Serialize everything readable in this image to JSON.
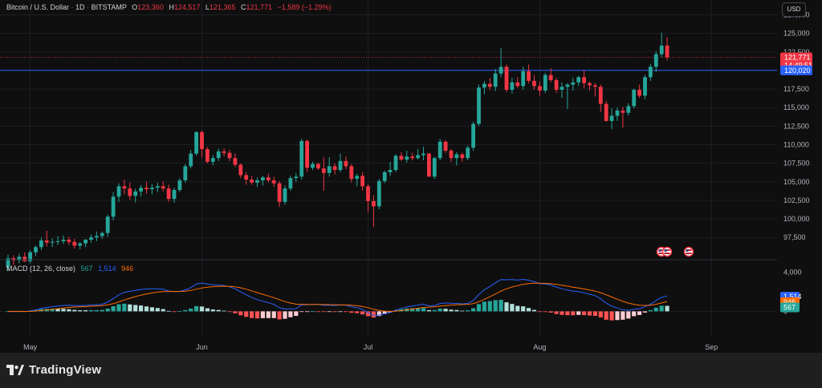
{
  "header": {
    "symbol": "Bitcoin / U.S. Dollar",
    "interval": "1D",
    "exchange": "BITSTAMP",
    "o_label": "O",
    "o_value": "123,360",
    "h_label": "H",
    "h_value": "124,517",
    "l_label": "L",
    "l_value": "121,365",
    "c_label": "C",
    "c_value": "121,771",
    "change": "−1,589 (−1.29%)"
  },
  "currency_button": "USD",
  "macd": {
    "label": "MACD (12, 26, close)",
    "hist_value": "567",
    "macd_value": "1,514",
    "signal_value": "946",
    "colors": {
      "macd": "#2962ff",
      "signal": "#ff6d00",
      "hist_pos_strong": "#26a69a",
      "hist_pos_weak": "#b2dfdb",
      "hist_neg_strong": "#ff5252",
      "hist_neg_weak": "#ffcdd2"
    }
  },
  "price_labels": {
    "last": "121,771",
    "countdown": "14:49:51",
    "line": "120,020"
  },
  "footer": {
    "brand": "TradingView"
  },
  "chart_data": {
    "type": "candlestick",
    "title": "Bitcoin / U.S. Dollar · 1D · BITSTAMP",
    "colors": {
      "up": "#26a69a",
      "down": "#f23645",
      "last_line": "#f23645",
      "hline": "#2962ff"
    },
    "y_ticks": [
      97500,
      100000,
      102500,
      105000,
      107500,
      110000,
      112500,
      115000,
      117500,
      120000,
      122500,
      125000,
      127500
    ],
    "y_tick_labels": [
      "97,500",
      "100,000",
      "102,500",
      "105,000",
      "107,500",
      "110,000",
      "112,500",
      "115,000",
      "117,500",
      "120,000",
      "122,500",
      "125,000",
      "127,500"
    ],
    "ylim": [
      94500,
      129500
    ],
    "x_labels": [
      "May",
      "Jun",
      "Jul",
      "Aug",
      "Sep"
    ],
    "x_label_index": [
      4,
      35,
      65,
      96,
      127
    ],
    "hline": 120020,
    "last_price": 121771,
    "macd_y_ticks": [
      0,
      4000
    ],
    "macd_y_tick_labels": [
      "0",
      "4,000"
    ],
    "macd_ylim": [
      -2600,
      4800
    ],
    "candles": [
      [
        93500,
        95200,
        93000,
        94700
      ],
      [
        94700,
        95100,
        93800,
        94400
      ],
      [
        94400,
        95300,
        94000,
        94900
      ],
      [
        94900,
        95500,
        94200,
        94300
      ],
      [
        94300,
        95800,
        94000,
        95500
      ],
      [
        95500,
        96400,
        95000,
        96200
      ],
      [
        96200,
        97500,
        95800,
        97100
      ],
      [
        97100,
        98400,
        96300,
        96800
      ],
      [
        96800,
        97400,
        96200,
        96900
      ],
      [
        96900,
        97700,
        96500,
        97000
      ],
      [
        97000,
        97800,
        96600,
        97200
      ],
      [
        97200,
        97600,
        96500,
        96900
      ],
      [
        96900,
        97300,
        96000,
        96400
      ],
      [
        96400,
        96900,
        95900,
        96700
      ],
      [
        96700,
        97300,
        96200,
        97200
      ],
      [
        97200,
        97900,
        96800,
        97500
      ],
      [
        97500,
        98300,
        97000,
        97700
      ],
      [
        97700,
        98300,
        97300,
        98100
      ],
      [
        98100,
        100600,
        97600,
        100300
      ],
      [
        100300,
        103600,
        99800,
        103000
      ],
      [
        103000,
        104800,
        102300,
        104400
      ],
      [
        104400,
        105300,
        103300,
        104100
      ],
      [
        104100,
        104900,
        102600,
        103100
      ],
      [
        103100,
        104100,
        102200,
        103700
      ],
      [
        103700,
        104600,
        103000,
        104200
      ],
      [
        104200,
        105000,
        103400,
        104000
      ],
      [
        104000,
        104700,
        103300,
        104200
      ],
      [
        104200,
        104900,
        103600,
        104400
      ],
      [
        104400,
        105100,
        103700,
        104100
      ],
      [
        104100,
        104600,
        102300,
        102700
      ],
      [
        102700,
        104200,
        102200,
        103900
      ],
      [
        103900,
        105500,
        103600,
        105200
      ],
      [
        105200,
        107400,
        104900,
        107100
      ],
      [
        107100,
        109300,
        106800,
        108800
      ],
      [
        108800,
        111800,
        108500,
        111700
      ],
      [
        111700,
        111900,
        108300,
        109400
      ],
      [
        109400,
        109700,
        107500,
        107700
      ],
      [
        107700,
        108600,
        107200,
        108200
      ],
      [
        108200,
        109500,
        107800,
        109100
      ],
      [
        109100,
        109500,
        108400,
        108900
      ],
      [
        108900,
        109300,
        107800,
        108200
      ],
      [
        108200,
        108800,
        107000,
        107300
      ],
      [
        107300,
        107500,
        105500,
        105900
      ],
      [
        105900,
        106300,
        104600,
        105300
      ],
      [
        105300,
        105800,
        104600,
        104900
      ],
      [
        104900,
        105600,
        104300,
        105200
      ],
      [
        105200,
        105800,
        104500,
        105600
      ],
      [
        105600,
        106100,
        104900,
        105200
      ],
      [
        105200,
        105700,
        104300,
        104800
      ],
      [
        104800,
        105100,
        101600,
        102300
      ],
      [
        102300,
        104500,
        101900,
        104100
      ],
      [
        104100,
        105800,
        103800,
        105500
      ],
      [
        105500,
        106200,
        105000,
        105700
      ],
      [
        105700,
        110800,
        105300,
        110500
      ],
      [
        110500,
        110700,
        106300,
        106900
      ],
      [
        106900,
        107700,
        106600,
        107400
      ],
      [
        107400,
        107600,
        106600,
        106800
      ],
      [
        106800,
        108300,
        103800,
        106200
      ],
      [
        106200,
        108300,
        105700,
        107100
      ],
      [
        107100,
        107500,
        106000,
        106600
      ],
      [
        106600,
        108800,
        106300,
        107800
      ],
      [
        107800,
        108400,
        106700,
        107100
      ],
      [
        107100,
        107400,
        104900,
        105400
      ],
      [
        105400,
        106100,
        104400,
        105800
      ],
      [
        105800,
        106300,
        103800,
        104400
      ],
      [
        104400,
        104700,
        100900,
        102400
      ],
      [
        102400,
        103200,
        98900,
        101700
      ],
      [
        101700,
        105400,
        101300,
        105100
      ],
      [
        105100,
        106500,
        104800,
        106300
      ],
      [
        106300,
        107700,
        105800,
        106600
      ],
      [
        106600,
        108700,
        106300,
        108500
      ],
      [
        108500,
        109000,
        107800,
        108000
      ],
      [
        108000,
        109200,
        107600,
        108400
      ],
      [
        108400,
        108900,
        107900,
        108200
      ],
      [
        108200,
        109400,
        108000,
        108600
      ],
      [
        108600,
        109700,
        107900,
        108800
      ],
      [
        108800,
        108900,
        105700,
        105700
      ],
      [
        105700,
        108400,
        105400,
        108200
      ],
      [
        108200,
        110800,
        107900,
        110400
      ],
      [
        110400,
        110600,
        108900,
        109200
      ],
      [
        109200,
        109400,
        107700,
        108200
      ],
      [
        108200,
        109000,
        107200,
        108700
      ],
      [
        108700,
        108900,
        107700,
        108200
      ],
      [
        108200,
        109900,
        107900,
        109600
      ],
      [
        109600,
        113100,
        109200,
        112800
      ],
      [
        112800,
        118100,
        112500,
        117700
      ],
      [
        117700,
        118600,
        116800,
        118200
      ],
      [
        118200,
        119000,
        117400,
        117800
      ],
      [
        117800,
        120200,
        117200,
        119600
      ],
      [
        119600,
        123000,
        119100,
        120500
      ],
      [
        120500,
        120800,
        117100,
        117400
      ],
      [
        117400,
        119000,
        116900,
        118400
      ],
      [
        118400,
        119100,
        117600,
        117900
      ],
      [
        117900,
        120500,
        117400,
        119900
      ],
      [
        119900,
        120800,
        118300,
        118600
      ],
      [
        118600,
        119400,
        117400,
        117900
      ],
      [
        117900,
        118500,
        116600,
        117300
      ],
      [
        117300,
        119700,
        117000,
        119400
      ],
      [
        119400,
        120300,
        118400,
        118700
      ],
      [
        118700,
        119000,
        117000,
        117400
      ],
      [
        117400,
        118400,
        116300,
        117800
      ],
      [
        117800,
        118300,
        114800,
        118100
      ],
      [
        118100,
        119000,
        117300,
        118400
      ],
      [
        118400,
        119300,
        117900,
        119100
      ],
      [
        119100,
        120000,
        117600,
        118300
      ],
      [
        118300,
        118500,
        117300,
        118000
      ],
      [
        118000,
        118300,
        116500,
        117800
      ],
      [
        117800,
        118100,
        114400,
        115500
      ],
      [
        115500,
        115900,
        113100,
        113200
      ],
      [
        113200,
        114900,
        112100,
        113900
      ],
      [
        113900,
        115000,
        113200,
        114600
      ],
      [
        114600,
        115100,
        112300,
        114300
      ],
      [
        114300,
        115600,
        113900,
        115200
      ],
      [
        115200,
        117600,
        114900,
        117400
      ],
      [
        117400,
        118100,
        116300,
        116600
      ],
      [
        116600,
        119400,
        116100,
        119100
      ],
      [
        119100,
        120900,
        118600,
        120500
      ],
      [
        120500,
        122600,
        119800,
        122200
      ],
      [
        122200,
        125100,
        121800,
        123360
      ],
      [
        123360,
        124517,
        121365,
        121771
      ]
    ],
    "macd_hist": [
      0,
      0,
      0,
      0,
      0,
      0,
      0,
      0,
      0,
      0
    ]
  }
}
